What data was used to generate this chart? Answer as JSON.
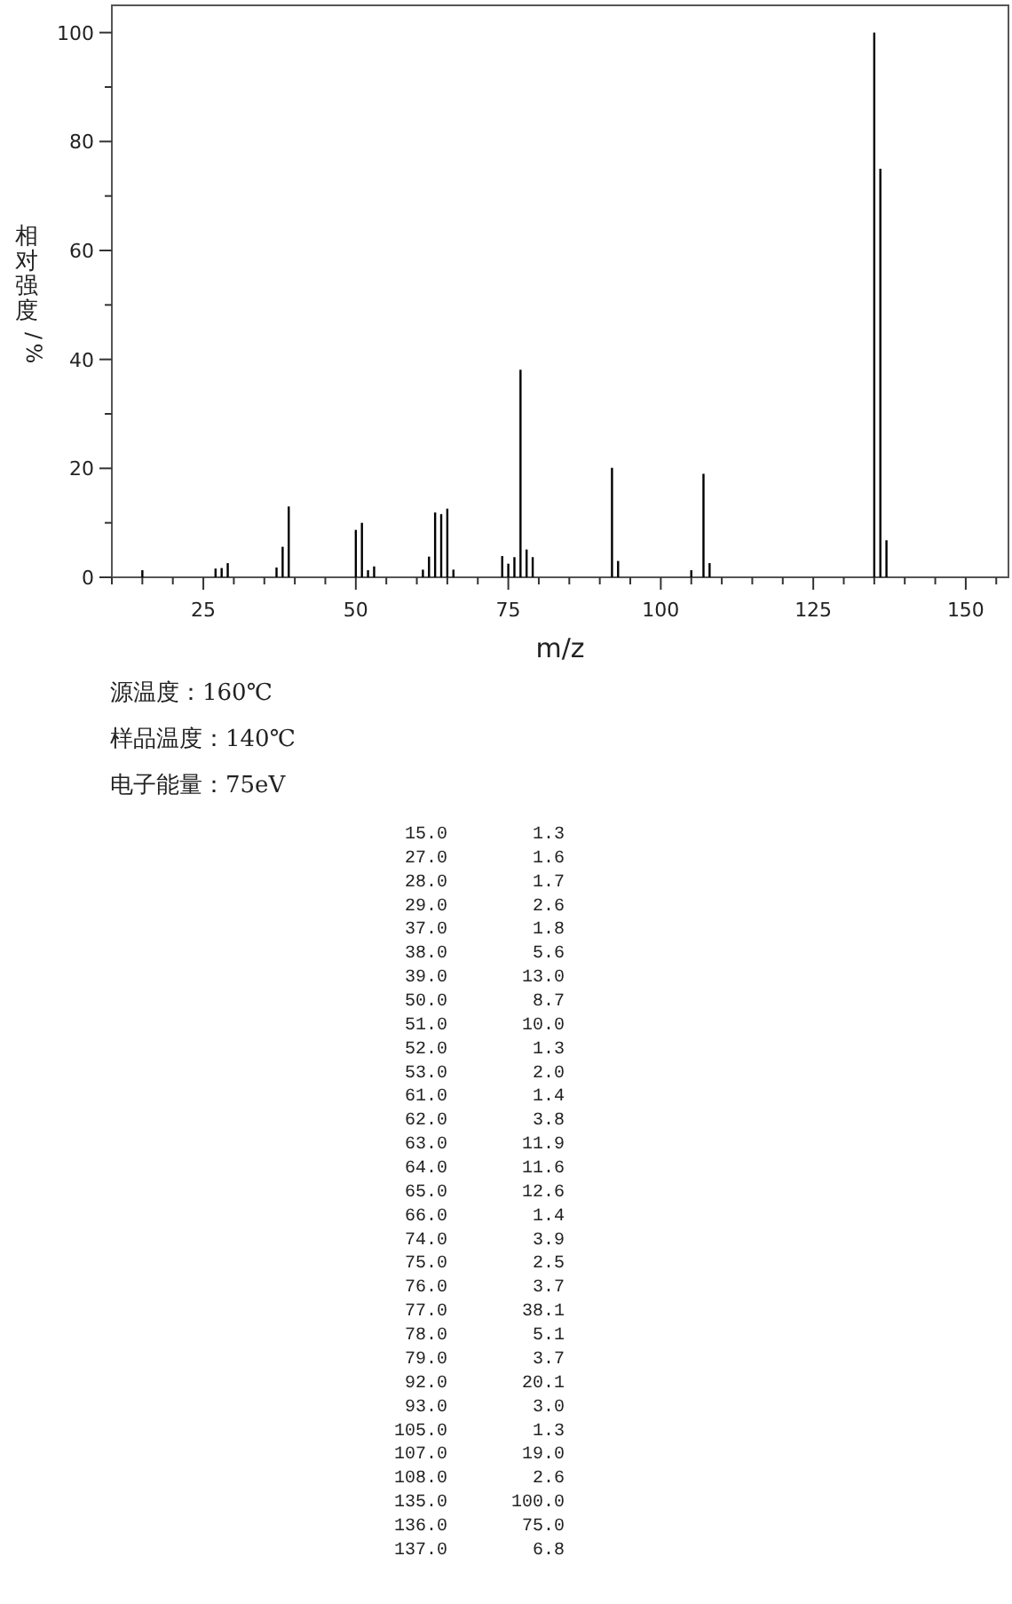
{
  "chart_data": [
    {
      "type": "bar",
      "xlabel": "m/z",
      "ylabel": "相对强度/%",
      "x": [
        15,
        27,
        28,
        29,
        37,
        38,
        39,
        50,
        51,
        52,
        53,
        61,
        62,
        63,
        64,
        65,
        66,
        74,
        75,
        76,
        77,
        78,
        79,
        92,
        93,
        105,
        107,
        108,
        135,
        136,
        137
      ],
      "series": [
        {
          "color": "#000000",
          "values": [
            1.3,
            1.6,
            1.7,
            2.6,
            1.8,
            5.6,
            13.0,
            8.7,
            10.0,
            1.3,
            2.0,
            1.4,
            3.8,
            11.9,
            11.6,
            12.6,
            1.4,
            3.9,
            2.5,
            3.7,
            38.1,
            5.1,
            3.7,
            20.1,
            3.0,
            1.3,
            19.0,
            2.6,
            100.0,
            75.0,
            6.8
          ]
        }
      ],
      "xlim": [
        10,
        157
      ],
      "ylim": [
        0,
        105
      ],
      "xticks": [
        {
          "value": 10,
          "label": null
        },
        {
          "value": 15,
          "label": null
        },
        {
          "value": 20,
          "label": null
        },
        25,
        {
          "value": 30,
          "label": null
        },
        {
          "value": 35,
          "label": null
        },
        {
          "value": 40,
          "label": null
        },
        {
          "value": 45,
          "label": null
        },
        50,
        {
          "value": 55,
          "label": null
        },
        {
          "value": 60,
          "label": null
        },
        {
          "value": 65,
          "label": null
        },
        {
          "value": 70,
          "label": null
        },
        75,
        {
          "value": 80,
          "label": null
        },
        {
          "value": 85,
          "label": null
        },
        {
          "value": 90,
          "label": null
        },
        {
          "value": 95,
          "label": null
        },
        100,
        {
          "value": 105,
          "label": null
        },
        {
          "value": 110,
          "label": null
        },
        {
          "value": 115,
          "label": null
        },
        {
          "value": 120,
          "label": null
        },
        125,
        {
          "value": 130,
          "label": null
        },
        {
          "value": 135,
          "label": null
        },
        {
          "value": 140,
          "label": null
        },
        {
          "value": 145,
          "label": null
        },
        150,
        {
          "value": 155,
          "label": null
        }
      ],
      "yticks": [
        0,
        {
          "value": 10,
          "label": null
        },
        20,
        {
          "value": 30,
          "label": null
        },
        40,
        {
          "value": 50,
          "label": null
        },
        60,
        {
          "value": 70,
          "label": null
        },
        80,
        {
          "value": 90,
          "label": null
        },
        100
      ],
      "annotations": [
        "源温度：160℃",
        "样品温度：140℃",
        "电子能量：75eV"
      ]
    },
    {
      "type": "other",
      "annotations": [
        "15.0",
        "1.3",
        "27.0",
        "1.6",
        "28.0",
        "1.7",
        "29.0",
        "2.6",
        "37.0",
        "1.8",
        "38.0",
        "5.6",
        "39.0",
        "13.0",
        "50.0",
        "8.7",
        "51.0",
        "10.0",
        "52.0",
        "1.3",
        "53.0",
        "2.0",
        "61.0",
        "1.4",
        "62.0",
        "3.8",
        "63.0",
        "11.9",
        "64.0",
        "11.6",
        "65.0",
        "12.6",
        "66.0",
        "1.4",
        "74.0",
        "3.9",
        "75.0",
        "2.5",
        "76.0",
        "3.7",
        "77.0",
        "38.1",
        "78.0",
        "5.1",
        "79.0",
        "3.7",
        "92.0",
        "20.1",
        "93.0",
        "3.0",
        "105.0",
        "1.3",
        "107.0",
        "19.0",
        "108.0",
        "2.6",
        "135.0",
        "100.0",
        "136.0",
        "75.0",
        "137.0",
        "6.8"
      ]
    }
  ]
}
